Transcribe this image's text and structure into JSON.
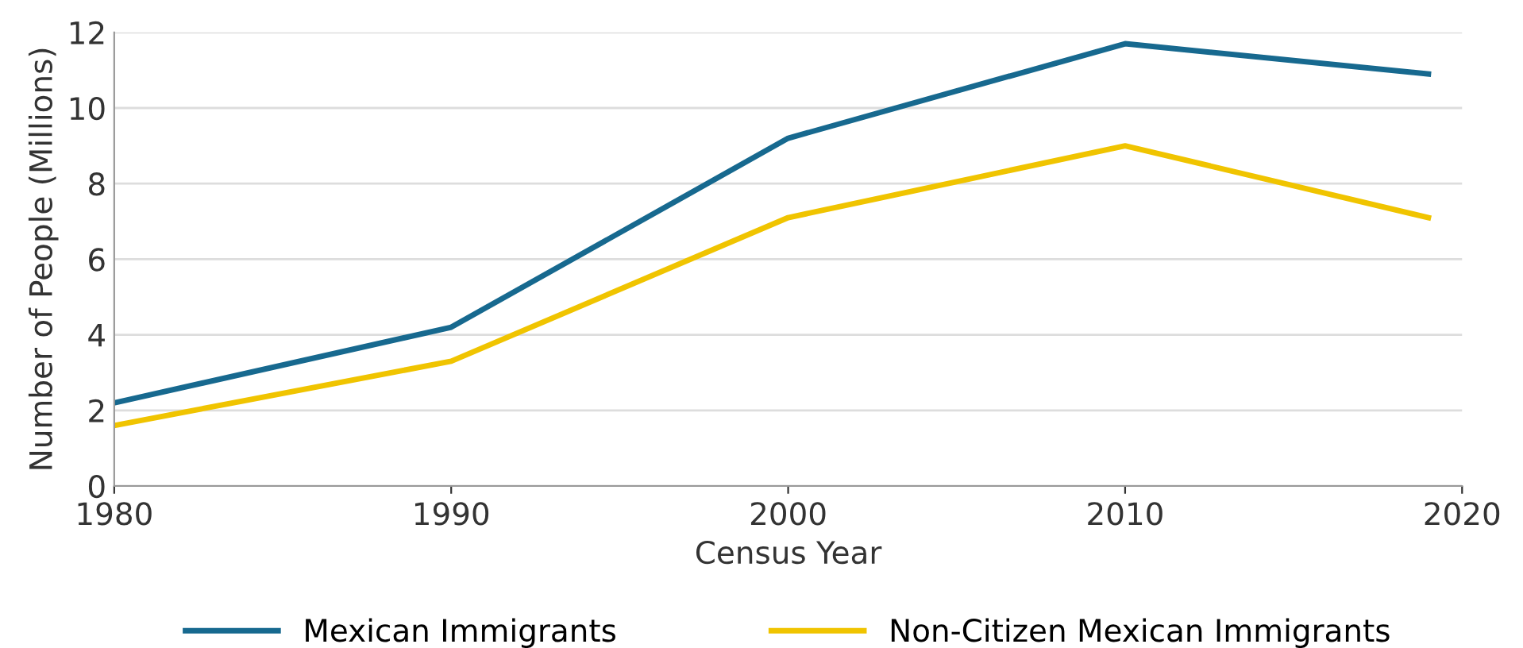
{
  "chart_data": {
    "type": "line",
    "xlabel": "Census Year",
    "ylabel": "Number of People (Millions)",
    "x": [
      1980,
      1990,
      2000,
      2010,
      2019
    ],
    "series": [
      {
        "name": "Mexican Immigrants",
        "color": "#17698f",
        "values": [
          2.2,
          4.2,
          9.2,
          11.7,
          10.9
        ]
      },
      {
        "name": "Non-Citizen Mexican Immigrants",
        "color": "#f0c400",
        "values": [
          1.6,
          3.3,
          7.1,
          9.0,
          7.1
        ]
      }
    ],
    "xlim": [
      1980,
      2020
    ],
    "xticks": [
      1980,
      1990,
      2000,
      2010,
      2020
    ],
    "ylim": [
      0,
      12
    ],
    "yticks": [
      0,
      2,
      4,
      6,
      8,
      10,
      12
    ],
    "grid": "y",
    "legend": "bottom",
    "marker": "none",
    "line_style": "solid"
  }
}
